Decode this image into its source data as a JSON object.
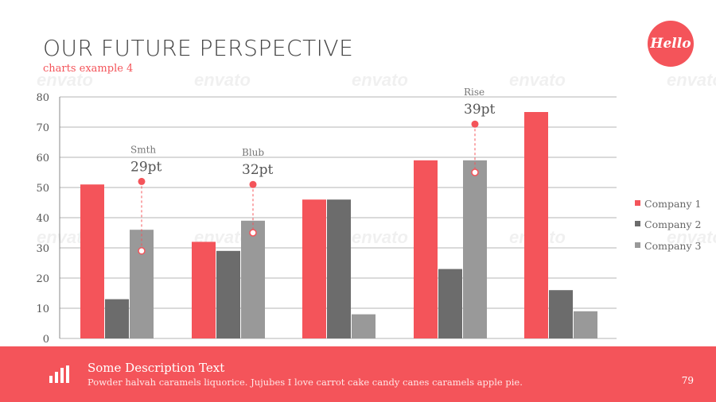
{
  "slide": {
    "title": "OUR FUTURE PERSPECTIVE",
    "subtitle": "charts example 4",
    "logo_text": "Hello",
    "watermark_text": "envato"
  },
  "footer": {
    "icon": "bar-chart-icon",
    "title": "Some Description Text",
    "text": "Powder halvah caramels liquorice. Jujubes I love carrot cake candy canes caramels apple pie.",
    "page_number": "79"
  },
  "colors": {
    "accent": "#f4545a",
    "company1": "#f4545a",
    "company2": "#6c6c6c",
    "company3": "#999999",
    "grid": "#b5b5b5"
  },
  "chart_data": {
    "type": "bar",
    "categories": [
      "",
      "",
      "",
      "",
      ""
    ],
    "ylim": [
      0,
      80
    ],
    "yticks": [
      0,
      10,
      20,
      30,
      40,
      50,
      60,
      70,
      80
    ],
    "grid": true,
    "legend_position": "right",
    "series": [
      {
        "name": "Company 1",
        "values": [
          51,
          32,
          46,
          59,
          75
        ]
      },
      {
        "name": "Company 2",
        "values": [
          13,
          29,
          46,
          23,
          16
        ]
      },
      {
        "name": "Company 3",
        "values": [
          36,
          39,
          8,
          59,
          9
        ]
      }
    ],
    "annotations": [
      {
        "category_index": 0,
        "series_index": 2,
        "label": "Smth",
        "value_text": "29pt",
        "from": 29,
        "to": 52
      },
      {
        "category_index": 1,
        "series_index": 2,
        "label": "Blub",
        "value_text": "32pt",
        "from": 35,
        "to": 51
      },
      {
        "category_index": 3,
        "series_index": 2,
        "label": "Rise",
        "value_text": "39pt",
        "from": 55,
        "to": 71
      }
    ]
  }
}
